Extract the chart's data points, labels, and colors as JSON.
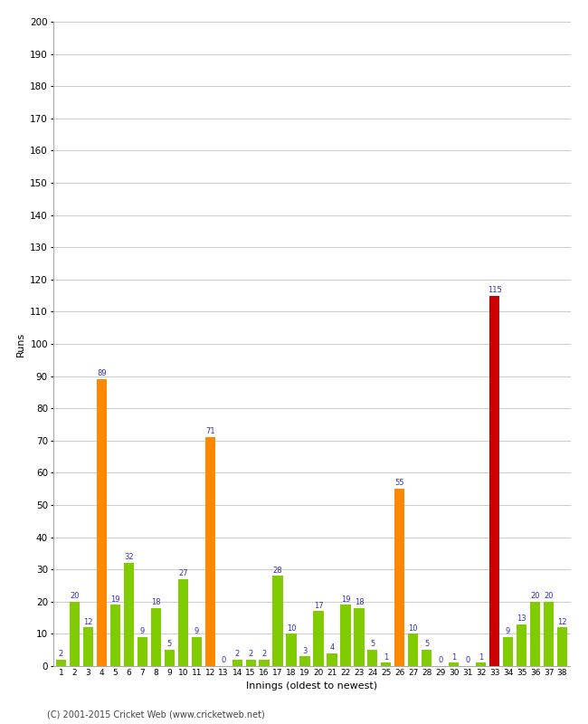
{
  "innings": [
    1,
    2,
    3,
    4,
    5,
    6,
    7,
    8,
    9,
    10,
    11,
    12,
    13,
    14,
    15,
    16,
    17,
    18,
    19,
    20,
    21,
    22,
    23,
    24,
    25,
    26,
    27,
    28,
    29,
    30,
    31,
    32,
    33,
    34,
    35,
    36,
    37,
    38
  ],
  "values": [
    2,
    20,
    12,
    89,
    19,
    32,
    9,
    18,
    5,
    27,
    9,
    71,
    0,
    2,
    2,
    2,
    28,
    10,
    3,
    17,
    4,
    19,
    18,
    5,
    1,
    55,
    10,
    5,
    0,
    1,
    0,
    1,
    115,
    9,
    13,
    20,
    20,
    12
  ],
  "colors": [
    "#80cc00",
    "#80cc00",
    "#80cc00",
    "#ff8800",
    "#80cc00",
    "#80cc00",
    "#80cc00",
    "#80cc00",
    "#80cc00",
    "#80cc00",
    "#80cc00",
    "#ff8800",
    "#80cc00",
    "#80cc00",
    "#80cc00",
    "#80cc00",
    "#80cc00",
    "#80cc00",
    "#80cc00",
    "#80cc00",
    "#80cc00",
    "#80cc00",
    "#80cc00",
    "#80cc00",
    "#80cc00",
    "#ff8800",
    "#80cc00",
    "#80cc00",
    "#80cc00",
    "#80cc00",
    "#80cc00",
    "#80cc00",
    "#cc0000",
    "#80cc00",
    "#80cc00",
    "#80cc00",
    "#80cc00",
    "#80cc00"
  ],
  "xlabel": "Innings (oldest to newest)",
  "ylabel": "Runs",
  "ylim": [
    0,
    200
  ],
  "ytick_step": 10,
  "background_color": "#ffffff",
  "grid_color": "#cccccc",
  "label_color": "#3333aa",
  "copyright": "(C) 2001-2015 Cricket Web (www.cricketweb.net)"
}
